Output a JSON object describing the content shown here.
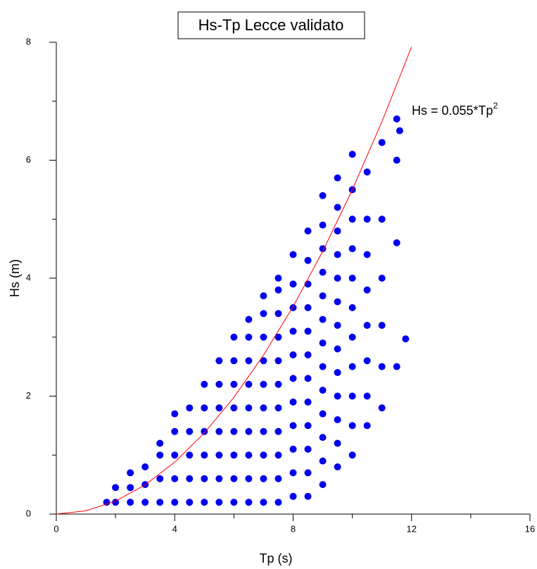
{
  "chart_data": {
    "type": "scatter",
    "title": "Hs-Tp Lecce validato",
    "x_label": "Tp (s)",
    "y_label": "Hs (m)",
    "color": "#0000ee",
    "x": [
      2,
      2,
      2.5,
      2.5,
      2.5,
      3,
      3,
      3,
      3.5,
      3.5,
      3.5,
      3.5,
      4,
      4,
      4,
      4,
      4,
      4.5,
      4.5,
      4.5,
      4.5,
      4.5,
      5,
      5,
      5,
      5,
      5,
      5,
      5.5,
      5.5,
      5.5,
      5.5,
      5.5,
      5.5,
      5.5,
      6,
      6,
      6,
      6,
      6,
      6,
      6,
      6,
      6.5,
      6.5,
      6.5,
      6.5,
      6.5,
      6.5,
      6.5,
      6.5,
      6.5,
      7,
      7,
      7,
      7,
      7,
      7,
      7,
      7,
      7,
      7,
      7.5,
      7.5,
      7.5,
      7.5,
      7.5,
      7.5,
      7.5,
      7.5,
      7.5,
      7.5,
      7.5,
      8,
      8,
      8,
      8,
      8,
      8,
      8,
      8,
      8,
      8,
      8,
      8.5,
      8.5,
      8.5,
      8.5,
      8.5,
      8.5,
      8.5,
      8.5,
      8.5,
      8.5,
      8.5,
      8.5,
      9,
      9,
      9,
      9,
      9,
      9,
      9,
      9,
      9,
      9,
      9,
      9,
      9,
      9.5,
      9.5,
      9.5,
      9.5,
      9.5,
      9.5,
      9.5,
      9.5,
      9.5,
      9.5,
      9.5,
      9.5,
      9.5,
      10,
      10,
      10,
      10,
      10,
      10,
      10,
      10,
      10,
      10,
      10,
      10.5,
      10.5,
      10.5,
      10.5,
      10.5,
      10.5,
      10.5,
      10.5,
      11,
      11,
      11,
      11,
      11,
      11,
      11.5,
      11.5,
      11.5,
      11.5,
      11.8,
      11.6,
      1.7
    ],
    "values": [
      0.2,
      0.45,
      0.2,
      0.45,
      0.7,
      0.2,
      0.5,
      0.8,
      0.2,
      0.6,
      1.0,
      1.2,
      0.2,
      0.6,
      1.0,
      1.4,
      1.7,
      0.2,
      0.6,
      1.0,
      1.4,
      1.8,
      0.2,
      0.6,
      1.0,
      1.4,
      1.8,
      2.2,
      0.2,
      0.6,
      1.0,
      1.4,
      1.8,
      2.2,
      2.6,
      0.2,
      0.6,
      1.0,
      1.4,
      1.8,
      2.2,
      2.6,
      3.0,
      0.2,
      0.6,
      1.0,
      1.4,
      1.8,
      2.2,
      2.6,
      3.0,
      3.3,
      0.2,
      0.6,
      1.0,
      1.4,
      1.8,
      2.2,
      2.6,
      3.0,
      3.4,
      3.7,
      0.2,
      0.6,
      1.0,
      1.4,
      1.8,
      2.2,
      2.6,
      3.0,
      3.4,
      3.8,
      4.0,
      0.3,
      0.7,
      1.1,
      1.5,
      1.9,
      2.3,
      2.7,
      3.1,
      3.5,
      3.9,
      4.4,
      0.3,
      0.7,
      1.1,
      1.5,
      1.9,
      2.3,
      2.7,
      3.1,
      3.5,
      3.9,
      4.3,
      4.8,
      0.5,
      0.9,
      1.3,
      1.7,
      2.1,
      2.5,
      2.9,
      3.3,
      3.7,
      4.1,
      4.5,
      4.9,
      5.4,
      0.8,
      1.2,
      1.6,
      2.0,
      2.4,
      2.8,
      3.2,
      3.6,
      4.0,
      4.4,
      4.8,
      5.2,
      5.7,
      1.0,
      1.5,
      2.0,
      2.5,
      3.0,
      3.5,
      4.0,
      4.5,
      5.0,
      5.5,
      6.1,
      1.5,
      2.0,
      2.6,
      3.2,
      3.8,
      4.4,
      5.0,
      5.8,
      1.8,
      2.5,
      3.2,
      4.0,
      5.0,
      6.3,
      2.5,
      4.6,
      6.0,
      6.7,
      2.97,
      6.5,
      0.2
    ],
    "curve": {
      "color": "#ff0000",
      "x": [
        0,
        1,
        2,
        3,
        4,
        5,
        6,
        7,
        8,
        9,
        10,
        11,
        12
      ],
      "values": [
        0,
        0.055,
        0.22,
        0.495,
        0.88,
        1.375,
        1.98,
        2.695,
        3.52,
        4.455,
        5.5,
        6.655,
        7.92
      ]
    },
    "annotation": {
      "text": "Hs = 0.055*Tp",
      "sup": "2",
      "color": "#ff0000"
    },
    "xlim": [
      0,
      16
    ],
    "ylim": [
      0,
      8
    ],
    "xticks": [
      0,
      4,
      8,
      12,
      16
    ],
    "xticks_minor": [
      2,
      6,
      10,
      14
    ],
    "yticks": [
      0,
      2,
      4,
      6,
      8
    ],
    "yticks_minor": [
      1,
      3,
      5,
      7
    ]
  }
}
